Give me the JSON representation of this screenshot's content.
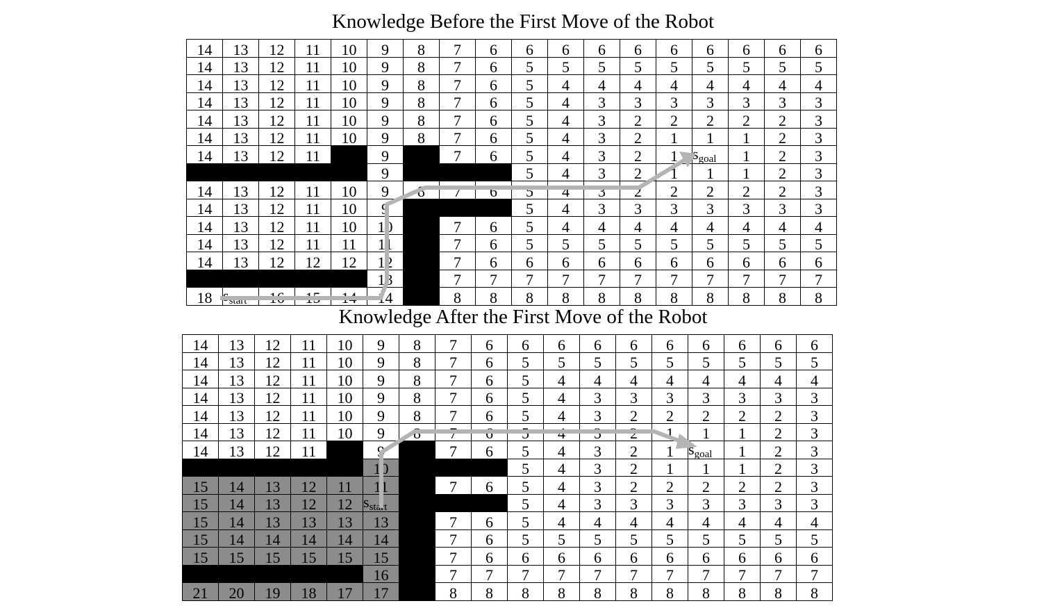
{
  "before": {
    "title": "Knowledge Before the First Move of the Robot",
    "rows": [
      [
        "14",
        "13",
        "12",
        "11",
        "10",
        "9",
        "8",
        "7",
        "6",
        "6",
        "6",
        "6",
        "6",
        "6",
        "6",
        "6",
        "6",
        "6"
      ],
      [
        "14",
        "13",
        "12",
        "11",
        "10",
        "9",
        "8",
        "7",
        "6",
        "5",
        "5",
        "5",
        "5",
        "5",
        "5",
        "5",
        "5",
        "5"
      ],
      [
        "14",
        "13",
        "12",
        "11",
        "10",
        "9",
        "8",
        "7",
        "6",
        "5",
        "4",
        "4",
        "4",
        "4",
        "4",
        "4",
        "4",
        "4"
      ],
      [
        "14",
        "13",
        "12",
        "11",
        "10",
        "9",
        "8",
        "7",
        "6",
        "5",
        "4",
        "3",
        "3",
        "3",
        "3",
        "3",
        "3",
        "3"
      ],
      [
        "14",
        "13",
        "12",
        "11",
        "10",
        "9",
        "8",
        "7",
        "6",
        "5",
        "4",
        "3",
        "2",
        "2",
        "2",
        "2",
        "2",
        "3"
      ],
      [
        "14",
        "13",
        "12",
        "11",
        "10",
        "9",
        "8",
        "7",
        "6",
        "5",
        "4",
        "3",
        "2",
        "1",
        "1",
        "1",
        "2",
        "3"
      ],
      [
        "14",
        "13",
        "12",
        "11",
        "#",
        "9",
        "#",
        "7",
        "6",
        "5",
        "4",
        "3",
        "2",
        "1",
        "s_goal",
        "1",
        "2",
        "3"
      ],
      [
        "#",
        "#",
        "#",
        "#",
        "#",
        "9",
        "#",
        "#",
        "#",
        "5",
        "4",
        "3",
        "2",
        "1",
        "1",
        "1",
        "2",
        "3"
      ],
      [
        "14",
        "13",
        "12",
        "11",
        "10",
        "9",
        "8",
        "7",
        "6",
        "5",
        "4",
        "3",
        "2",
        "2",
        "2",
        "2",
        "2",
        "3"
      ],
      [
        "14",
        "13",
        "12",
        "11",
        "10",
        "9",
        "#",
        "#",
        "#",
        "5",
        "4",
        "3",
        "3",
        "3",
        "3",
        "3",
        "3",
        "3"
      ],
      [
        "14",
        "13",
        "12",
        "11",
        "10",
        "10",
        "#",
        "7",
        "6",
        "5",
        "4",
        "4",
        "4",
        "4",
        "4",
        "4",
        "4",
        "4"
      ],
      [
        "14",
        "13",
        "12",
        "11",
        "11",
        "11",
        "#",
        "7",
        "6",
        "5",
        "5",
        "5",
        "5",
        "5",
        "5",
        "5",
        "5",
        "5"
      ],
      [
        "14",
        "13",
        "12",
        "12",
        "12",
        "12",
        "#",
        "7",
        "6",
        "6",
        "6",
        "6",
        "6",
        "6",
        "6",
        "6",
        "6",
        "6"
      ],
      [
        "#",
        "#",
        "#",
        "#",
        "#",
        "13",
        "#",
        "7",
        "7",
        "7",
        "7",
        "7",
        "7",
        "7",
        "7",
        "7",
        "7",
        "7"
      ],
      [
        "18",
        "s_start",
        "16",
        "15",
        "14",
        "14",
        "#",
        "8",
        "8",
        "8",
        "8",
        "8",
        "8",
        "8",
        "8",
        "8",
        "8",
        "8"
      ]
    ]
  },
  "after": {
    "title": "Knowledge After the First Move of the Robot",
    "rows": [
      [
        "14",
        "13",
        "12",
        "11",
        "10",
        "9",
        "8",
        "7",
        "6",
        "6",
        "6",
        "6",
        "6",
        "6",
        "6",
        "6",
        "6",
        "6"
      ],
      [
        "14",
        "13",
        "12",
        "11",
        "10",
        "9",
        "8",
        "7",
        "6",
        "5",
        "5",
        "5",
        "5",
        "5",
        "5",
        "5",
        "5",
        "5"
      ],
      [
        "14",
        "13",
        "12",
        "11",
        "10",
        "9",
        "8",
        "7",
        "6",
        "5",
        "4",
        "4",
        "4",
        "4",
        "4",
        "4",
        "4",
        "4"
      ],
      [
        "14",
        "13",
        "12",
        "11",
        "10",
        "9",
        "8",
        "7",
        "6",
        "5",
        "4",
        "3",
        "3",
        "3",
        "3",
        "3",
        "3",
        "3"
      ],
      [
        "14",
        "13",
        "12",
        "11",
        "10",
        "9",
        "8",
        "7",
        "6",
        "5",
        "4",
        "3",
        "2",
        "2",
        "2",
        "2",
        "2",
        "3"
      ],
      [
        "14",
        "13",
        "12",
        "11",
        "10",
        "9",
        "8",
        "7",
        "6",
        "5",
        "4",
        "3",
        "2",
        "1",
        "1",
        "1",
        "2",
        "3"
      ],
      [
        "14",
        "13",
        "12",
        "11",
        "#",
        "9",
        "#",
        "7",
        "6",
        "5",
        "4",
        "3",
        "2",
        "1",
        "s_goal",
        "1",
        "2",
        "3"
      ],
      [
        "#",
        "#",
        "#",
        "#",
        "#",
        "10g",
        "#",
        "#",
        "#",
        "5",
        "4",
        "3",
        "2",
        "1",
        "1",
        "1",
        "2",
        "3"
      ],
      [
        "15g",
        "14g",
        "13g",
        "12g",
        "11g",
        "11g",
        "#",
        "7",
        "6",
        "5",
        "4",
        "3",
        "2",
        "2",
        "2",
        "2",
        "2",
        "3"
      ],
      [
        "15g",
        "14g",
        "13g",
        "12g",
        "12g",
        "s_start_g",
        "#",
        "#",
        "#",
        "5",
        "4",
        "3",
        "3",
        "3",
        "3",
        "3",
        "3",
        "3"
      ],
      [
        "15g",
        "14g",
        "13g",
        "13g",
        "13g",
        "13g",
        "#",
        "7",
        "6",
        "5",
        "4",
        "4",
        "4",
        "4",
        "4",
        "4",
        "4",
        "4"
      ],
      [
        "15g",
        "14g",
        "14g",
        "14g",
        "14g",
        "14g",
        "#",
        "7",
        "6",
        "5",
        "5",
        "5",
        "5",
        "5",
        "5",
        "5",
        "5",
        "5"
      ],
      [
        "15g",
        "15g",
        "15g",
        "15g",
        "15g",
        "15g",
        "#",
        "7",
        "6",
        "6",
        "6",
        "6",
        "6",
        "6",
        "6",
        "6",
        "6",
        "6"
      ],
      [
        "#",
        "#",
        "#",
        "#",
        "#",
        "16g",
        "#",
        "7",
        "7",
        "7",
        "7",
        "7",
        "7",
        "7",
        "7",
        "7",
        "7",
        "7"
      ],
      [
        "21g",
        "20g",
        "19g",
        "18g",
        "17g",
        "17g",
        "#",
        "8",
        "8",
        "8",
        "8",
        "8",
        "8",
        "8",
        "8",
        "8",
        "8",
        "8"
      ]
    ]
  },
  "labels": {
    "s": "s",
    "start": "start",
    "goal": "goal"
  },
  "colors": {
    "obstacle": "#000000",
    "updated_cell": "#8c8c8c",
    "path_arrow": "#b4b4b4"
  }
}
